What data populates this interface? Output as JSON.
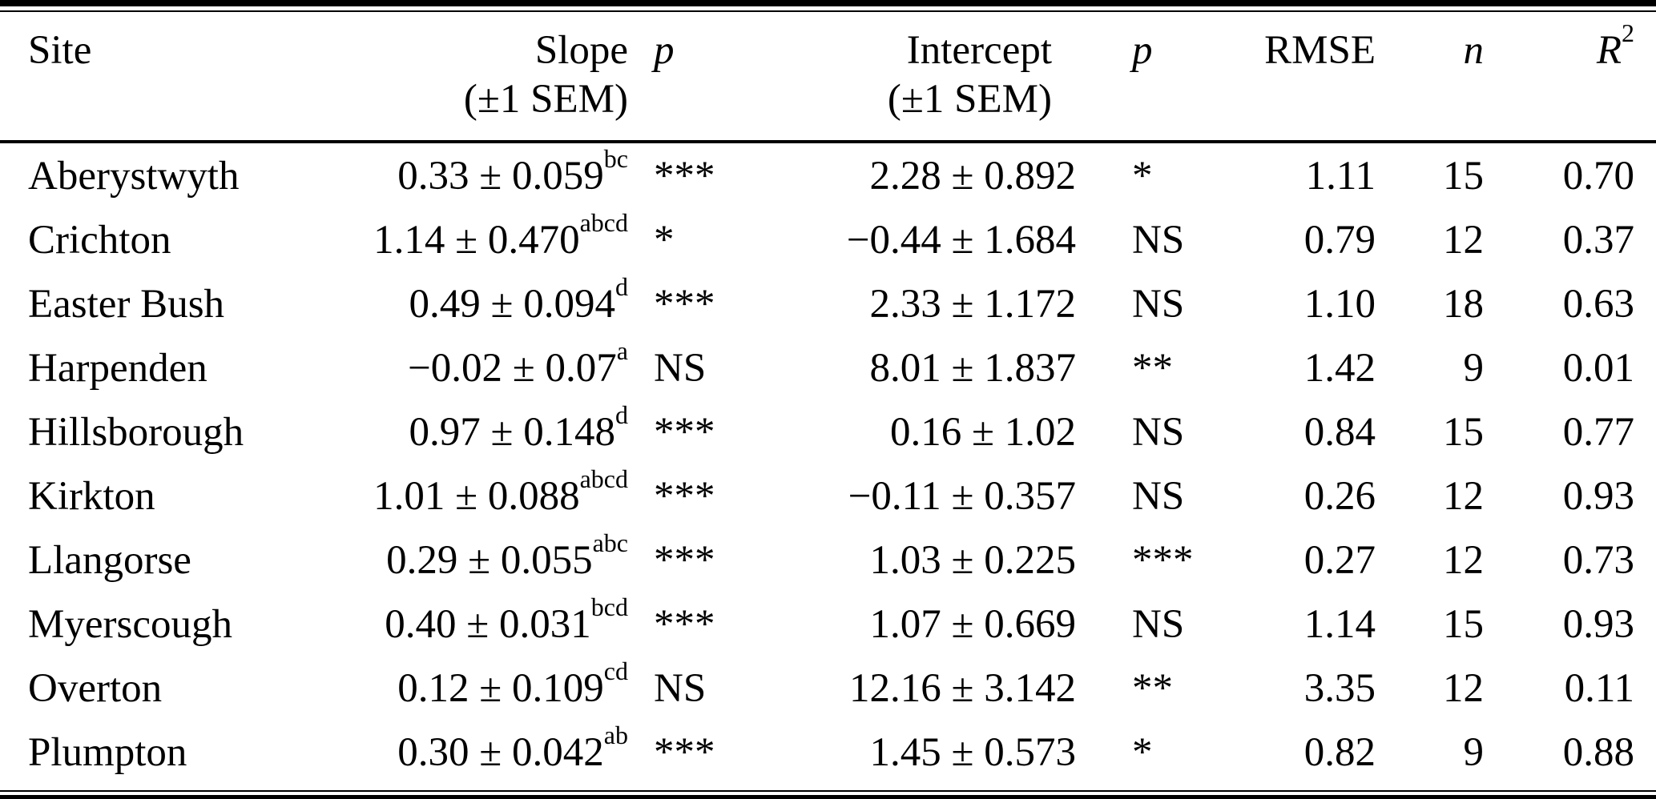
{
  "colors": {
    "text": "#000000",
    "background": "#ffffff",
    "rule": "#000000"
  },
  "table": {
    "headers": {
      "site": "Site",
      "slope_line1": "Slope",
      "slope_line2": "(±1 SEM)",
      "p1": "p",
      "intercept_line1": "Intercept",
      "intercept_line2": "(±1 SEM)",
      "p2": "p",
      "rmse": "RMSE",
      "n": "n",
      "r2_base": "R",
      "r2_sup": "2"
    },
    "rows": [
      {
        "site": "Aberystwyth",
        "slope": "0.33 ± 0.059",
        "slope_sup": "bc",
        "p1": "***",
        "intercept": "2.28 ± 0.892",
        "p2": "*",
        "rmse": "1.11",
        "n": "15",
        "r2": "0.70"
      },
      {
        "site": "Crichton",
        "slope": "1.14 ± 0.470",
        "slope_sup": "abcd",
        "p1": "*",
        "intercept": "−0.44 ± 1.684",
        "p2": "NS",
        "rmse": "0.79",
        "n": "12",
        "r2": "0.37"
      },
      {
        "site": "Easter Bush",
        "slope": "0.49 ± 0.094",
        "slope_sup": "d",
        "p1": "***",
        "intercept": "2.33 ± 1.172",
        "p2": "NS",
        "rmse": "1.10",
        "n": "18",
        "r2": "0.63"
      },
      {
        "site": "Harpenden",
        "slope": "−0.02 ± 0.07",
        "slope_sup": "a",
        "p1": "NS",
        "intercept": "8.01 ± 1.837",
        "p2": "**",
        "rmse": "1.42",
        "n": "9",
        "r2": "0.01"
      },
      {
        "site": "Hillsborough",
        "slope": "0.97 ± 0.148",
        "slope_sup": "d",
        "p1": "***",
        "intercept": "0.16 ± 1.02",
        "p2": "NS",
        "rmse": "0.84",
        "n": "15",
        "r2": "0.77"
      },
      {
        "site": "Kirkton",
        "slope": "1.01 ± 0.088",
        "slope_sup": "abcd",
        "p1": "***",
        "intercept": "−0.11 ± 0.357",
        "p2": "NS",
        "rmse": "0.26",
        "n": "12",
        "r2": "0.93"
      },
      {
        "site": "Llangorse",
        "slope": "0.29 ± 0.055",
        "slope_sup": "abc",
        "p1": "***",
        "intercept": "1.03 ± 0.225",
        "p2": "***",
        "rmse": "0.27",
        "n": "12",
        "r2": "0.73"
      },
      {
        "site": "Myerscough",
        "slope": "0.40 ± 0.031",
        "slope_sup": "bcd",
        "p1": "***",
        "intercept": "1.07 ± 0.669",
        "p2": "NS",
        "rmse": "1.14",
        "n": "15",
        "r2": "0.93"
      },
      {
        "site": "Overton",
        "slope": "0.12 ± 0.109",
        "slope_sup": "cd",
        "p1": "NS",
        "intercept": "12.16 ± 3.142",
        "p2": "**",
        "rmse": "3.35",
        "n": "12",
        "r2": "0.11"
      },
      {
        "site": "Plumpton",
        "slope": "0.30 ± 0.042",
        "slope_sup": "ab",
        "p1": "***",
        "intercept": "1.45 ± 0.573",
        "p2": "*",
        "rmse": "0.82",
        "n": "9",
        "r2": "0.88"
      }
    ]
  }
}
